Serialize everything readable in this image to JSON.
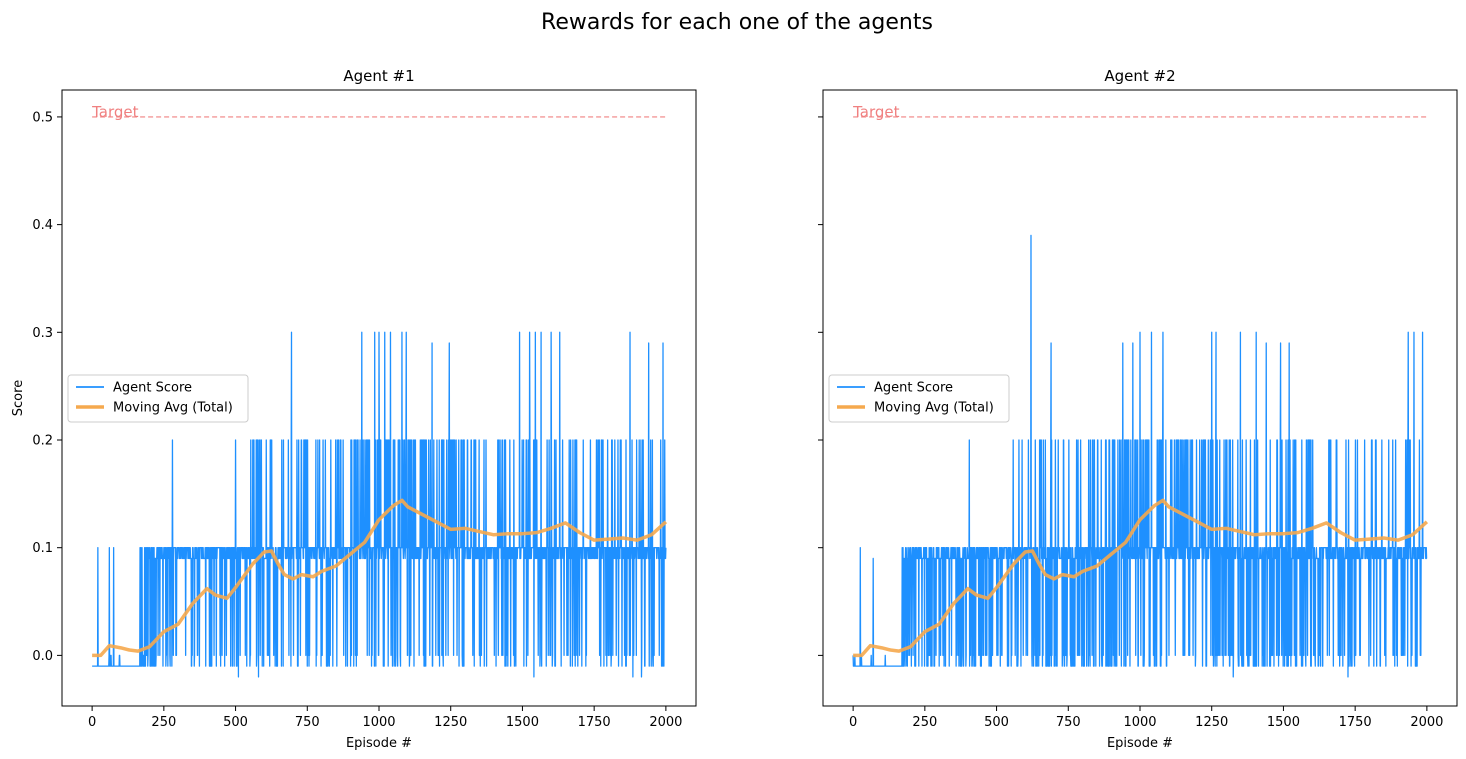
{
  "figure": {
    "title": "Rewards for each one of the agents"
  },
  "chart_data": [
    {
      "type": "line",
      "title": "Agent #1",
      "xlabel": "Episode #",
      "ylabel": "Score",
      "xlim": [
        -105,
        2105
      ],
      "ylim": [
        -0.047,
        0.525
      ],
      "xticks": [
        0,
        250,
        500,
        750,
        1000,
        1250,
        1500,
        1750,
        2000
      ],
      "yticks": [
        0.0,
        0.1,
        0.2,
        0.3,
        0.4,
        0.5
      ],
      "grid": false,
      "legend_position": "center-left",
      "legend": [
        "Agent Score",
        "Moving Avg (Total)"
      ],
      "target": {
        "label": "Target",
        "value": 0.5,
        "x": [
          0,
          2000
        ]
      },
      "series": [
        {
          "name": "Agent Score",
          "color": "#1e90ff",
          "style": "noisy",
          "x": [
            0,
            20,
            60,
            160,
            200,
            260,
            300,
            400,
            500,
            560,
            600,
            700,
            800,
            900,
            950,
            1000,
            1050,
            1100,
            1150,
            1200,
            1300,
            1400,
            1500,
            1600,
            1700,
            1800,
            1900,
            2000
          ],
          "values": [
            0.0,
            0.0,
            0.0,
            0.0,
            0.1,
            0.1,
            0.1,
            0.1,
            0.1,
            0.1,
            0.1,
            0.1,
            0.1,
            0.1,
            0.1,
            0.1,
            0.2,
            0.1,
            0.1,
            0.1,
            0.1,
            0.1,
            0.1,
            0.1,
            0.1,
            0.1,
            0.1,
            0.1
          ],
          "spikes": [
            [
              20,
              0.1
            ],
            [
              60,
              0.1
            ],
            [
              75,
              0.1
            ],
            [
              280,
              0.2
            ],
            [
              500,
              0.2
            ],
            [
              560,
              0.2
            ],
            [
              575,
              0.2
            ],
            [
              695,
              0.3
            ],
            [
              940,
              0.3
            ],
            [
              985,
              0.3
            ],
            [
              1000,
              0.3
            ],
            [
              1020,
              0.3
            ],
            [
              1040,
              0.3
            ],
            [
              1080,
              0.3
            ],
            [
              1095,
              0.3
            ],
            [
              1185,
              0.29
            ],
            [
              1245,
              0.29
            ],
            [
              1490,
              0.3
            ],
            [
              1525,
              0.3
            ],
            [
              1545,
              0.3
            ],
            [
              1565,
              0.3
            ],
            [
              1600,
              0.3
            ],
            [
              1630,
              0.3
            ],
            [
              1875,
              0.3
            ],
            [
              1940,
              0.29
            ],
            [
              1990,
              0.29
            ]
          ],
          "dips": [
            [
              20,
              -0.01
            ],
            [
              510,
              -0.02
            ],
            [
              580,
              -0.02
            ],
            [
              1540,
              -0.02
            ],
            [
              1885,
              -0.02
            ],
            [
              1915,
              -0.02
            ]
          ]
        },
        {
          "name": "Moving Avg (Total)",
          "color": "#f5a94e",
          "x": [
            0,
            30,
            60,
            100,
            130,
            160,
            200,
            250,
            300,
            350,
            400,
            430,
            470,
            500,
            560,
            600,
            625,
            650,
            670,
            700,
            730,
            770,
            800,
            850,
            900,
            950,
            1000,
            1050,
            1080,
            1100,
            1150,
            1200,
            1250,
            1300,
            1350,
            1400,
            1450,
            1500,
            1550,
            1600,
            1650,
            1700,
            1750,
            1800,
            1850,
            1900,
            1950,
            2000
          ],
          "values": [
            0.0,
            0.0,
            0.009,
            0.007,
            0.005,
            0.004,
            0.008,
            0.022,
            0.029,
            0.048,
            0.062,
            0.056,
            0.053,
            0.063,
            0.085,
            0.096,
            0.097,
            0.084,
            0.075,
            0.071,
            0.075,
            0.073,
            0.078,
            0.083,
            0.094,
            0.105,
            0.126,
            0.139,
            0.144,
            0.138,
            0.131,
            0.124,
            0.117,
            0.118,
            0.115,
            0.112,
            0.113,
            0.113,
            0.114,
            0.118,
            0.123,
            0.114,
            0.107,
            0.108,
            0.109,
            0.107,
            0.112,
            0.124
          ]
        }
      ]
    },
    {
      "type": "line",
      "title": "Agent #2",
      "xlabel": "Episode #",
      "ylabel": "",
      "xlim": [
        -105,
        2105
      ],
      "ylim": [
        -0.047,
        0.525
      ],
      "xticks": [
        0,
        250,
        500,
        750,
        1000,
        1250,
        1500,
        1750,
        2000
      ],
      "yticks": [
        0.0,
        0.1,
        0.2,
        0.3,
        0.4,
        0.5
      ],
      "grid": false,
      "legend_position": "center-left",
      "legend": [
        "Agent Score",
        "Moving Avg (Total)"
      ],
      "target": {
        "label": "Target",
        "value": 0.5,
        "x": [
          0,
          2000
        ]
      },
      "series": [
        {
          "name": "Agent Score",
          "color": "#1e90ff",
          "style": "noisy",
          "x": [
            0,
            20,
            60,
            160,
            200,
            260,
            300,
            400,
            500,
            560,
            600,
            700,
            800,
            900,
            950,
            1000,
            1050,
            1100,
            1150,
            1200,
            1300,
            1400,
            1500,
            1550,
            1600,
            1700,
            1800,
            1900,
            2000
          ],
          "values": [
            0.0,
            0.0,
            0.0,
            0.0,
            0.09,
            0.09,
            0.09,
            0.1,
            0.1,
            0.19,
            0.1,
            0.09,
            0.09,
            0.09,
            0.1,
            0.1,
            0.2,
            0.1,
            0.1,
            0.1,
            0.09,
            0.09,
            0.09,
            0.09,
            0.1,
            0.1,
            0.1,
            0.1,
            0.1
          ],
          "spikes": [
            [
              25,
              0.1
            ],
            [
              70,
              0.09
            ],
            [
              405,
              0.2
            ],
            [
              620,
              0.39
            ],
            [
              690,
              0.29
            ],
            [
              940,
              0.29
            ],
            [
              975,
              0.29
            ],
            [
              1000,
              0.3
            ],
            [
              1040,
              0.3
            ],
            [
              1080,
              0.3
            ],
            [
              1250,
              0.3
            ],
            [
              1265,
              0.3
            ],
            [
              1350,
              0.3
            ],
            [
              1405,
              0.3
            ],
            [
              1440,
              0.29
            ],
            [
              1490,
              0.29
            ],
            [
              1520,
              0.29
            ],
            [
              1935,
              0.3
            ],
            [
              1955,
              0.3
            ],
            [
              1985,
              0.3
            ]
          ],
          "dips": [
            [
              1325,
              -0.02
            ],
            [
              1725,
              -0.02
            ]
          ]
        },
        {
          "name": "Moving Avg (Total)",
          "color": "#f5a94e",
          "x": [
            0,
            30,
            60,
            100,
            130,
            160,
            200,
            250,
            300,
            350,
            400,
            430,
            470,
            500,
            560,
            600,
            625,
            650,
            670,
            700,
            730,
            770,
            800,
            850,
            900,
            950,
            1000,
            1050,
            1080,
            1100,
            1150,
            1200,
            1250,
            1300,
            1350,
            1400,
            1450,
            1500,
            1550,
            1600,
            1650,
            1700,
            1750,
            1800,
            1850,
            1900,
            1950,
            2000
          ],
          "values": [
            0.0,
            0.0,
            0.009,
            0.007,
            0.005,
            0.004,
            0.008,
            0.022,
            0.029,
            0.048,
            0.062,
            0.056,
            0.053,
            0.063,
            0.085,
            0.096,
            0.097,
            0.084,
            0.075,
            0.071,
            0.075,
            0.073,
            0.078,
            0.083,
            0.094,
            0.105,
            0.126,
            0.139,
            0.144,
            0.138,
            0.131,
            0.124,
            0.117,
            0.118,
            0.115,
            0.112,
            0.113,
            0.113,
            0.114,
            0.118,
            0.123,
            0.114,
            0.107,
            0.108,
            0.109,
            0.107,
            0.112,
            0.124
          ]
        }
      ]
    }
  ]
}
